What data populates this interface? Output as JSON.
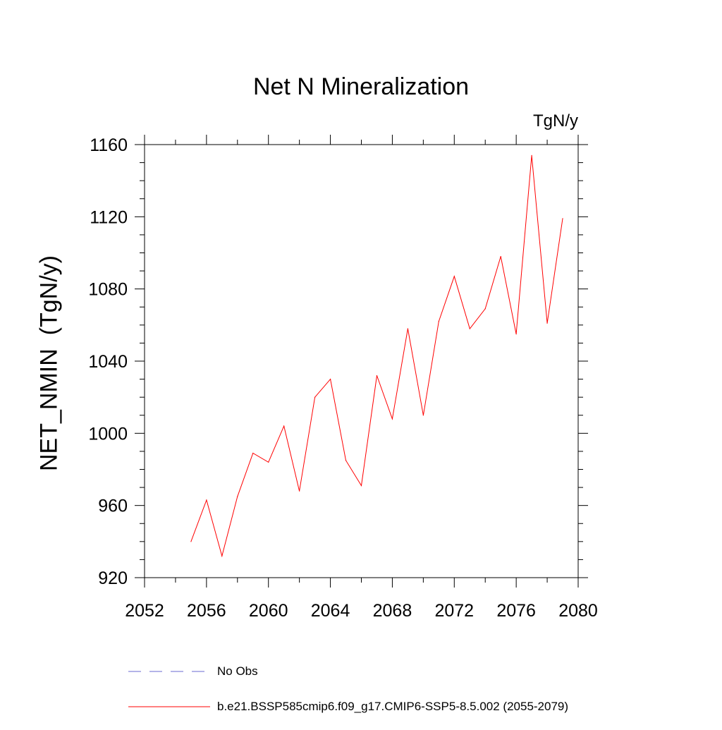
{
  "chart_data": {
    "type": "line",
    "title": "Net N Mineralization",
    "units": "TgN/y",
    "ylabel": "NET_NMIN  (TgN/y)",
    "xlabel": "",
    "xlim": [
      2052,
      2080
    ],
    "ylim": [
      920,
      1160
    ],
    "x_ticks": [
      "2052",
      "2056",
      "2060",
      "2064",
      "2068",
      "2072",
      "2076",
      "2080"
    ],
    "y_ticks": [
      "920",
      "960",
      "1000",
      "1040",
      "1080",
      "1120",
      "1160"
    ],
    "x_tick_values": [
      2052,
      2056,
      2060,
      2064,
      2068,
      2072,
      2076,
      2080
    ],
    "y_tick_values": [
      920,
      960,
      1000,
      1040,
      1080,
      1120,
      1160
    ],
    "grid": false,
    "legend_position": "bottom",
    "series": [
      {
        "name": "b.e21.BSSP585cmip6.f09_g17.CMIP6-SSP5-8.5.002 (2055-2079)",
        "color": "#ff0000",
        "x": [
          2055,
          2056,
          2057,
          2058,
          2059,
          2060,
          2061,
          2062,
          2063,
          2064,
          2065,
          2066,
          2067,
          2068,
          2069,
          2070,
          2071,
          2072,
          2073,
          2074,
          2075,
          2076,
          2077,
          2078,
          2079
        ],
        "y": [
          940,
          963,
          932,
          965,
          989,
          984,
          1004,
          968,
          1020,
          1030,
          985,
          971,
          1032,
          1008,
          1058,
          1010,
          1062,
          1087,
          1058,
          1069,
          1098,
          1055,
          1154,
          1061,
          1119
        ]
      }
    ],
    "legend_entries": [
      {
        "label": "No Obs",
        "color": "#6a6ad0",
        "style": "dashed"
      },
      {
        "label": "b.e21.BSSP585cmip6.f09_g17.CMIP6-SSP5-8.5.002 (2055-2079)",
        "color": "#ff0000",
        "style": "solid"
      }
    ]
  }
}
